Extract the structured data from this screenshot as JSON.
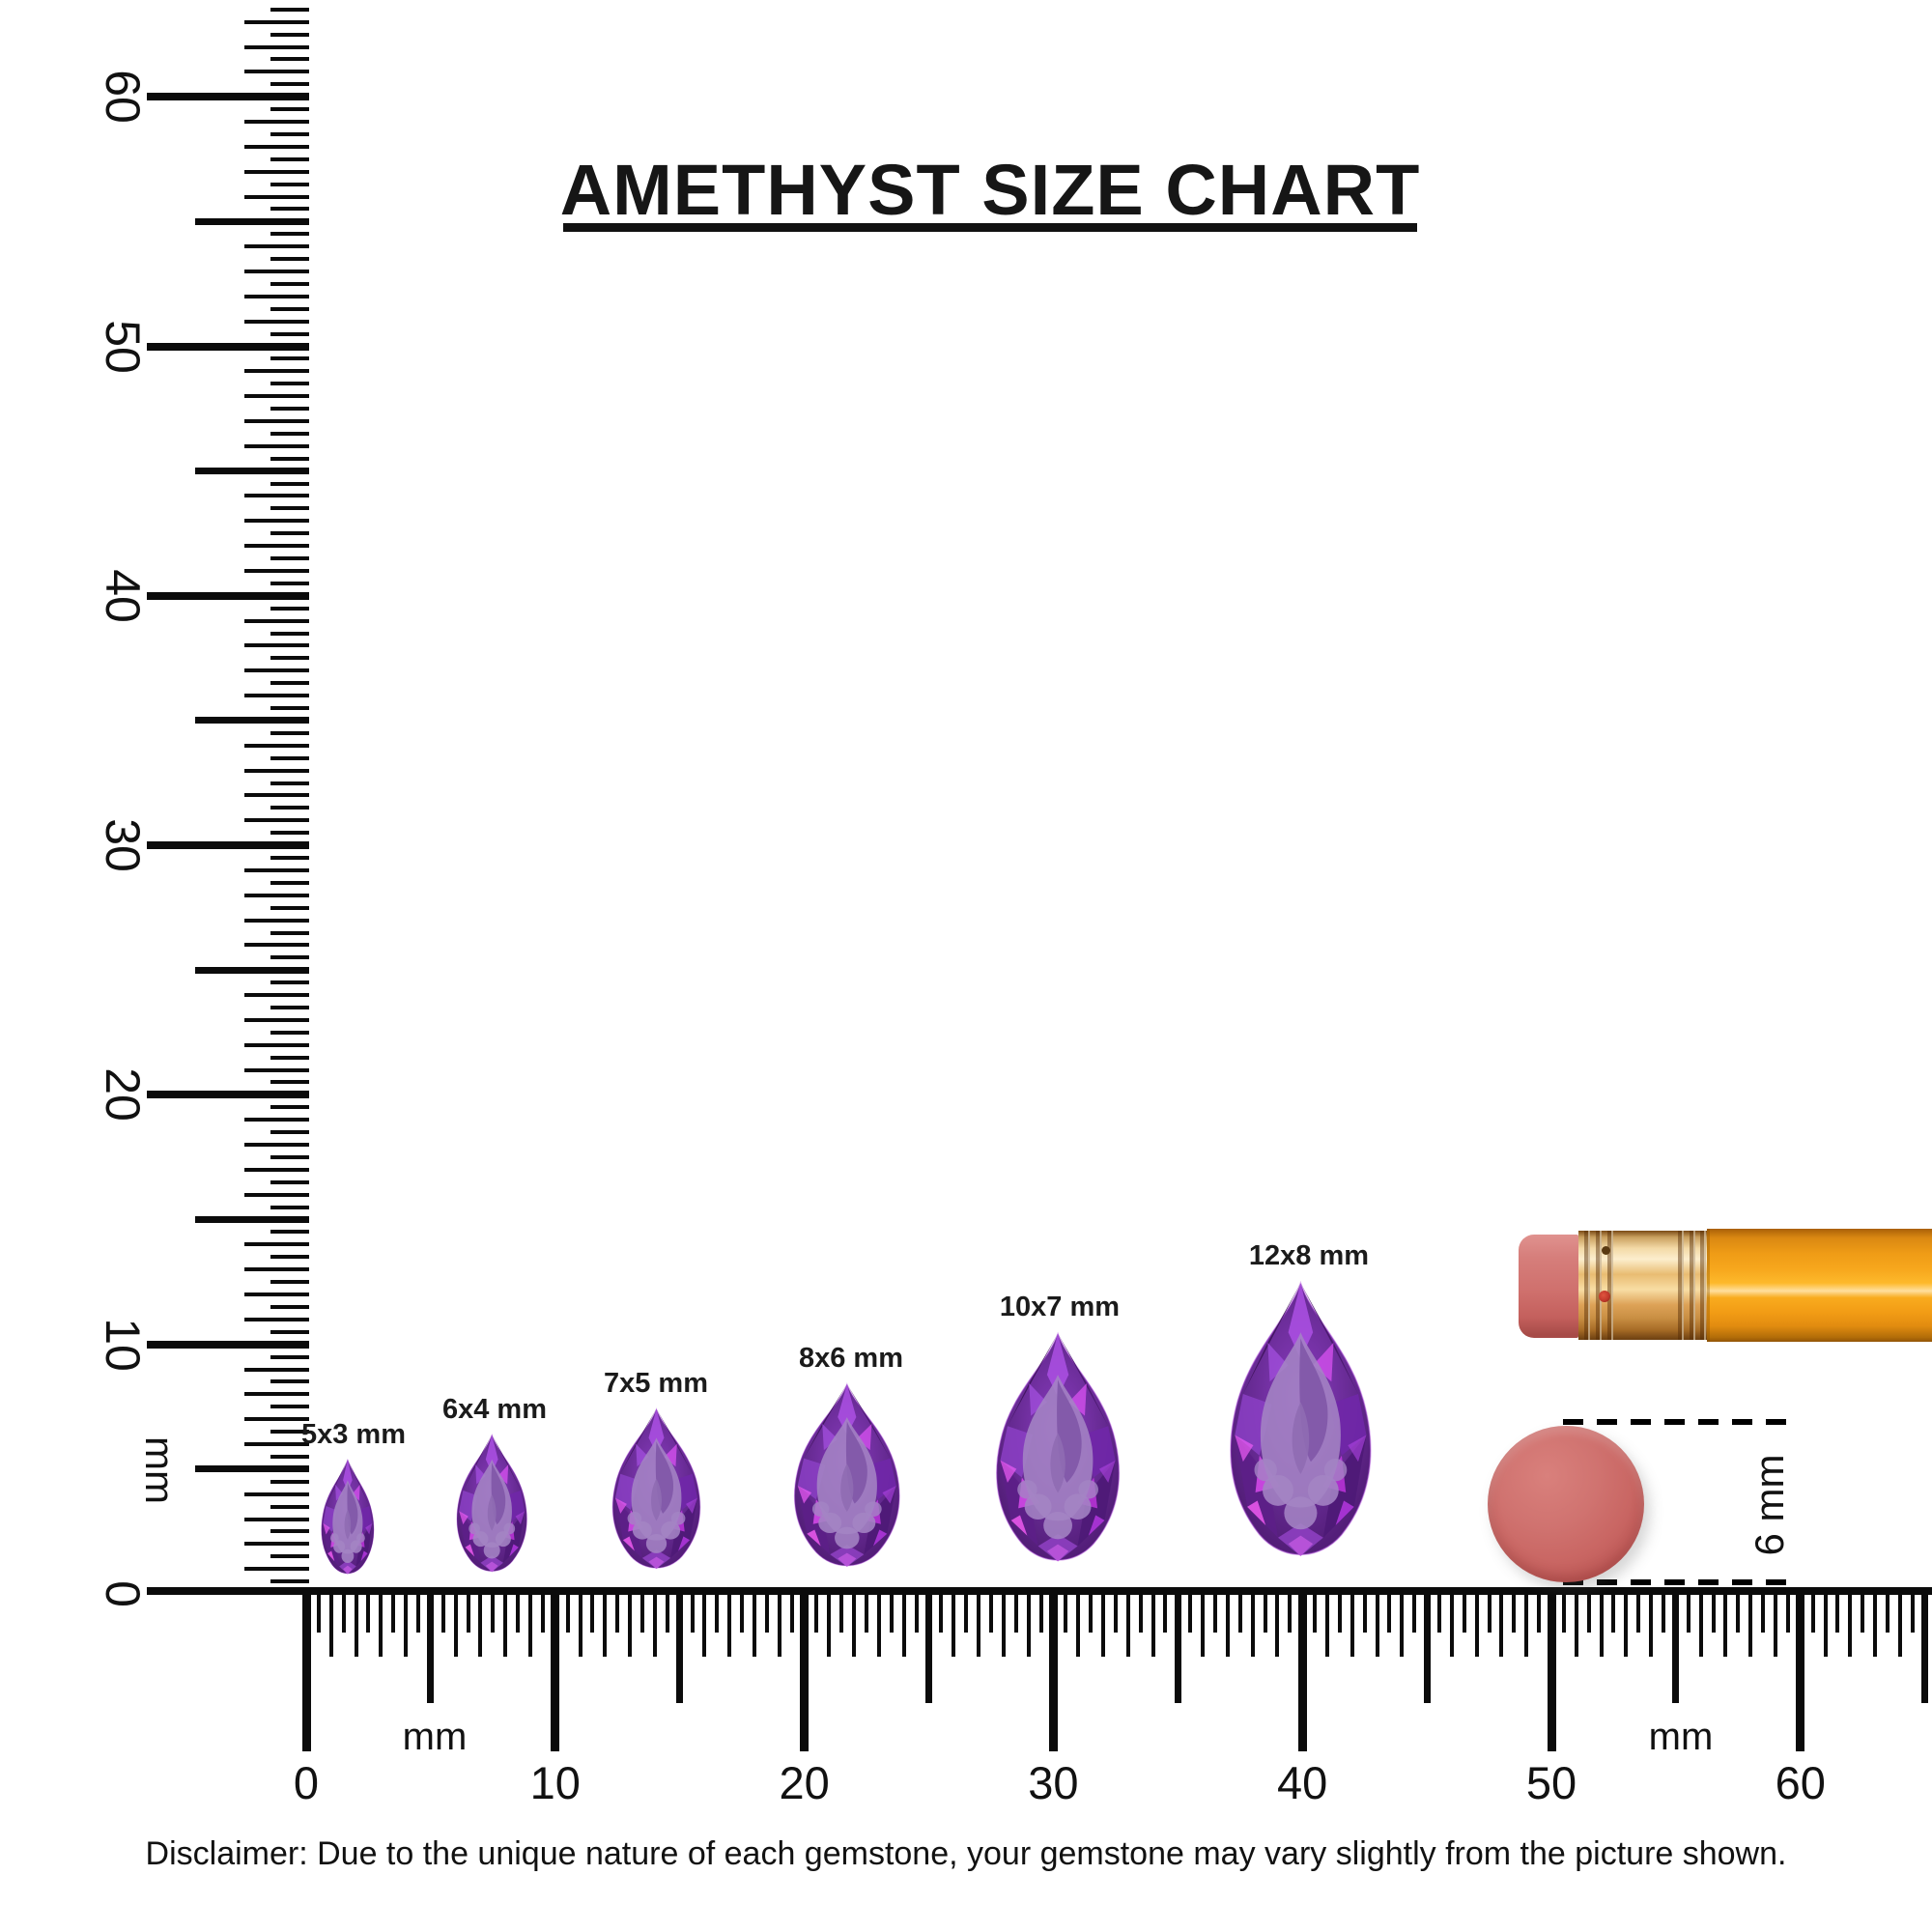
{
  "title": {
    "text": "AMETHYST SIZE CHART"
  },
  "gems": [
    {
      "label": "5x3 mm",
      "length_mm": 5,
      "width_mm": 3
    },
    {
      "label": "6x4 mm",
      "length_mm": 6,
      "width_mm": 4
    },
    {
      "label": "7x5 mm",
      "length_mm": 7,
      "width_mm": 5
    },
    {
      "label": "8x6 mm",
      "length_mm": 8,
      "width_mm": 6
    },
    {
      "label": "10x7 mm",
      "length_mm": 10,
      "width_mm": 7
    },
    {
      "label": "12x8 mm",
      "length_mm": 12,
      "width_mm": 8
    }
  ],
  "vertical_ruler": {
    "unit": "mm",
    "labels": [
      "0",
      "10",
      "20",
      "30",
      "40",
      "50",
      "60"
    ]
  },
  "horizontal_ruler": {
    "unit_left": "mm",
    "unit_right": "mm",
    "labels": [
      "0",
      "10",
      "20",
      "30",
      "40",
      "50",
      "60"
    ]
  },
  "scale_reference": {
    "eraser_diameter_label": "6 mm"
  },
  "disclaimer": {
    "text": "Disclaimer: Due to the unique nature of each gemstone, your gemstone may vary slightly from the picture shown."
  },
  "colors": {
    "amethyst_base": "#662a92",
    "amethyst_dark": "#3c1258",
    "amethyst_magenta": "#e14df2",
    "amethyst_table": "#a484c4",
    "pencil_body_orange": "#f7a71d",
    "ferrule_gold": "#e9bc72",
    "eraser_pink": "#cf706d",
    "disc_rose": "#c96663",
    "ink": "#0b0b0b"
  }
}
